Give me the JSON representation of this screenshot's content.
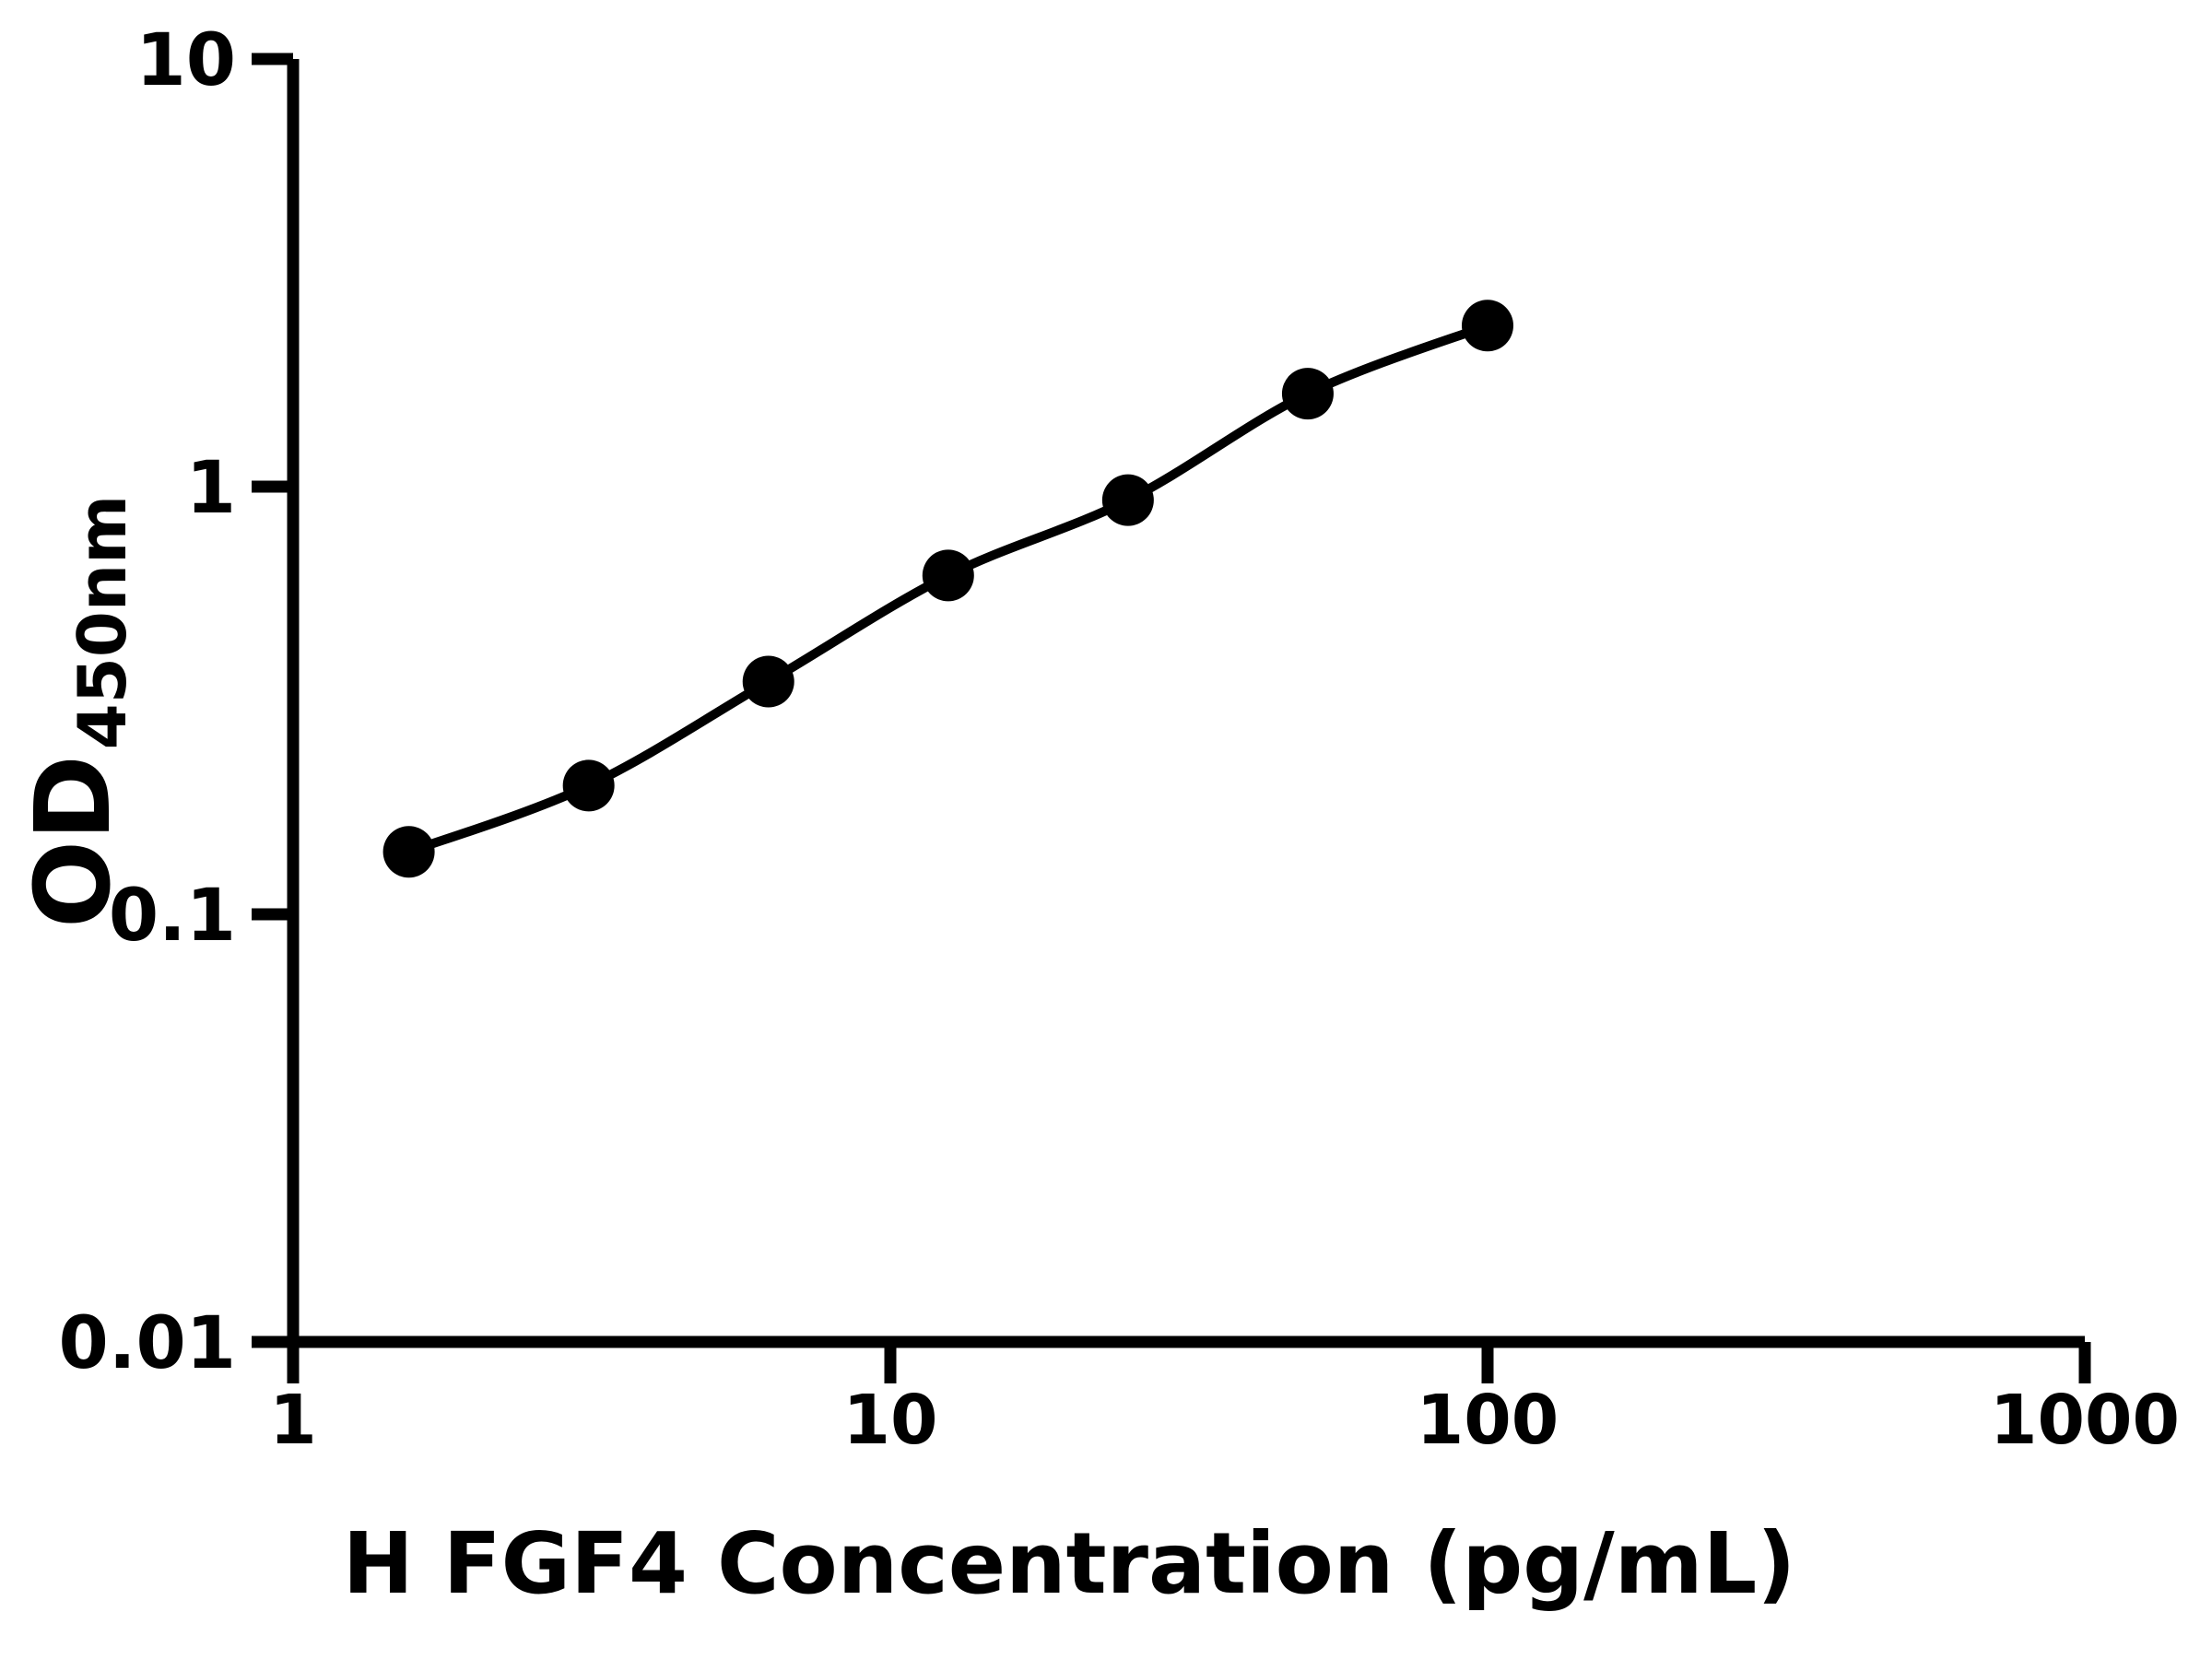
{
  "figure": {
    "background_color": "#ffffff",
    "axis_color": "#000000"
  },
  "chart_data": {
    "type": "line",
    "xlabel": "H FGF4 Concentration (pg/mL)",
    "ylabel": "OD",
    "ylabel_subscript": "450nm",
    "x_scale": "log",
    "y_scale": "log",
    "xlim": [
      1,
      1000
    ],
    "ylim": [
      0.01,
      10
    ],
    "x_ticks": [
      "1",
      "10",
      "100",
      "1000"
    ],
    "y_ticks": [
      "10",
      "1",
      "0.1",
      "0.01"
    ],
    "grid": false,
    "legend": "none",
    "series": [
      {
        "marker": "filled-circle",
        "color": "#000000",
        "x": [
          1.5625,
          3.125,
          6.25,
          12.5,
          25,
          50,
          100
        ],
        "y": [
          0.14,
          0.2,
          0.35,
          0.62,
          0.93,
          1.65,
          2.38
        ]
      }
    ]
  }
}
